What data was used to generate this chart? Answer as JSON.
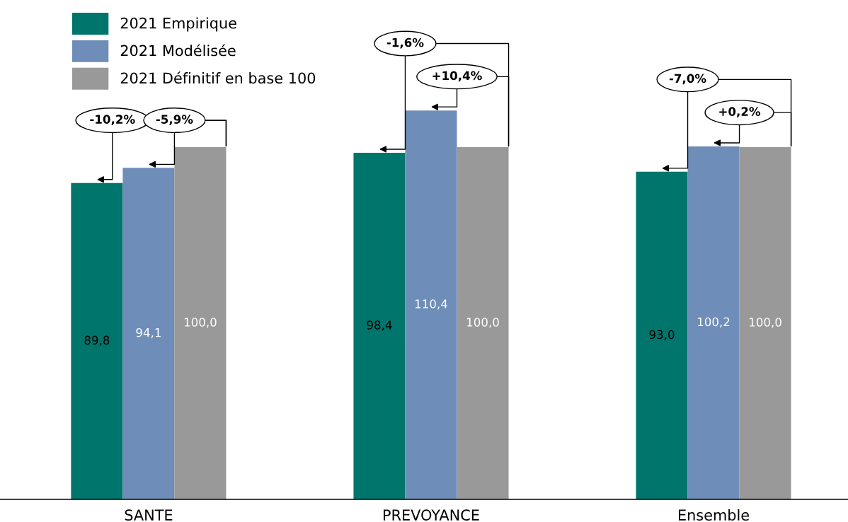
{
  "chart_data": {
    "type": "bar",
    "categories": [
      "SANTE",
      "PREVOYANCE",
      "Ensemble"
    ],
    "series": [
      {
        "name": "2021 Empirique",
        "color": "#00756b",
        "values": [
          89.8,
          98.4,
          93.0
        ],
        "value_labels": [
          "89,8",
          "98,4",
          "93,0"
        ]
      },
      {
        "name": "2021 Modélisée",
        "color": "#6f8db9",
        "values": [
          94.1,
          110.4,
          100.2
        ],
        "value_labels": [
          "94,1",
          "110,4",
          "100,2"
        ]
      },
      {
        "name": "2021 Définitif en base 100",
        "color": "#999999",
        "values": [
          100.0,
          100.0,
          100.0
        ],
        "value_labels": [
          "100,0",
          "100,0",
          "100,0"
        ]
      }
    ],
    "tick_labels": "x",
    "grid": false,
    "legend": "top left",
    "annotations": [
      "-10,2%",
      "-5,9%",
      "-1,6%",
      "+10,4%",
      "-7,0%",
      "+0,2%"
    ]
  }
}
